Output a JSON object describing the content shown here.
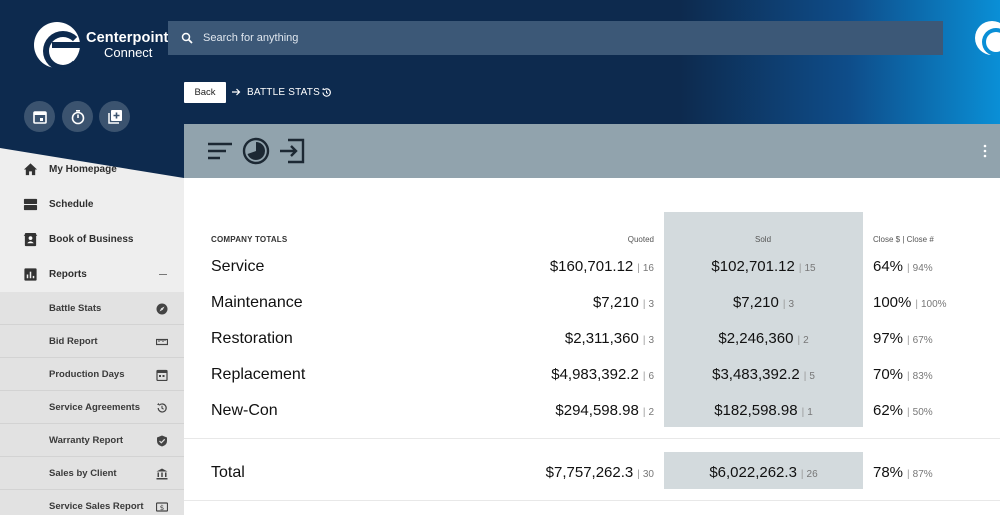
{
  "brand": {
    "line1": "Centerpoint",
    "line2": "Connect"
  },
  "search": {
    "placeholder": "Search for anything"
  },
  "breadcrumb": {
    "back_label": "Back",
    "title": "BATTLE STATS"
  },
  "sidebar": {
    "items": [
      {
        "label": "My Homepage",
        "icon": "home-icon"
      },
      {
        "label": "Schedule",
        "icon": "schedule-icon"
      },
      {
        "label": "Book of Business",
        "icon": "contact-book-icon"
      },
      {
        "label": "Reports",
        "icon": "bar-chart-icon"
      }
    ],
    "sub_items": [
      {
        "label": "Battle Stats",
        "icon": "compass-icon"
      },
      {
        "label": "Bid Report",
        "icon": "ruler-icon"
      },
      {
        "label": "Production Days",
        "icon": "calendar-icon"
      },
      {
        "label": "Service Agreements",
        "icon": "history-icon"
      },
      {
        "label": "Warranty Report",
        "icon": "shield-icon"
      },
      {
        "label": "Sales by Client",
        "icon": "bank-icon"
      },
      {
        "label": "Service Sales Report",
        "icon": "dollar-icon"
      }
    ]
  },
  "table": {
    "headers": {
      "company": "COMPANY TOTALS",
      "quoted": "Quoted",
      "sold": "Sold",
      "close": "Close $ | Close #"
    },
    "rows": [
      {
        "name": "Service",
        "quoted": "$160,701.12",
        "quoted_count": "16",
        "sold": "$102,701.12",
        "sold_count": "15",
        "close_pct": "64%",
        "close_num": "94%"
      },
      {
        "name": "Maintenance",
        "quoted": "$7,210",
        "quoted_count": "3",
        "sold": "$7,210",
        "sold_count": "3",
        "close_pct": "100%",
        "close_num": "100%"
      },
      {
        "name": "Restoration",
        "quoted": "$2,311,360",
        "quoted_count": "3",
        "sold": "$2,246,360",
        "sold_count": "2",
        "close_pct": "97%",
        "close_num": "67%"
      },
      {
        "name": "Replacement",
        "quoted": "$4,983,392.2",
        "quoted_count": "6",
        "sold": "$3,483,392.2",
        "sold_count": "5",
        "close_pct": "70%",
        "close_num": "83%"
      },
      {
        "name": "New-Con",
        "quoted": "$294,598.98",
        "quoted_count": "2",
        "sold": "$182,598.98",
        "sold_count": "1",
        "close_pct": "62%",
        "close_num": "50%"
      }
    ],
    "total": {
      "name": "Total",
      "quoted": "$7,757,262.3",
      "quoted_count": "30",
      "sold": "$6,022,262.3",
      "sold_count": "26",
      "close_pct": "78%",
      "close_num": "87%"
    }
  },
  "colors": {
    "navy": "#0d2a4e",
    "accent_blue": "#0a8fd6",
    "toolbar": "#91a3ad",
    "sold_highlight": "#d3dadd"
  }
}
